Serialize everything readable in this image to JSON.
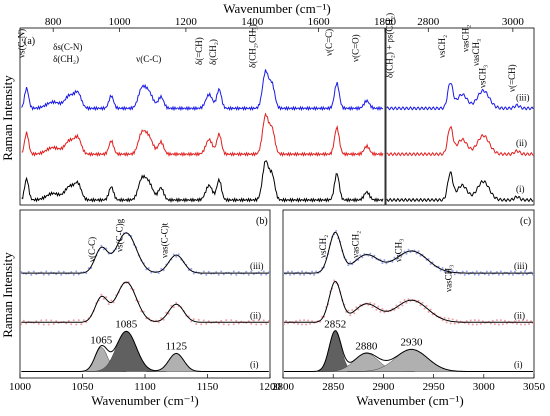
{
  "colors": {
    "black": "#000000",
    "red": "#e02020",
    "blue": "#1a1ae6",
    "pink": "#f2a0a8",
    "lightblue": "#9aa6f0",
    "gray": "#b0b0b0",
    "darkgray": "#606060"
  },
  "chart_data": [
    {
      "panel": "(a)",
      "type": "line",
      "xlabel": "Wavenumber (cm⁻¹)",
      "ylabel": "Raman Intensity",
      "xlim_left": [
        700,
        1800
      ],
      "xticks_left": [
        "800",
        "1000",
        "1200",
        "1400",
        "1600",
        "1800"
      ],
      "xlim_right": [
        2700,
        3050
      ],
      "xticks_right": [
        "2800",
        "3000"
      ],
      "series": [
        {
          "name": "(iii)",
          "color": "#1a1ae6",
          "offset": 2.0
        },
        {
          "name": "(ii)",
          "color": "#e02020",
          "offset": 1.0
        },
        {
          "name": "(i)",
          "color": "#000000",
          "offset": 0.0
        }
      ],
      "peaks_left": [
        [
          720,
          0.8,
          6
        ],
        [
          800,
          0.25,
          20
        ],
        [
          850,
          0.5,
          14
        ],
        [
          875,
          0.55,
          10
        ],
        [
          975,
          0.5,
          7
        ],
        [
          1065,
          0.55,
          10
        ],
        [
          1085,
          0.7,
          14
        ],
        [
          1125,
          0.45,
          8
        ],
        [
          1270,
          0.55,
          10
        ],
        [
          1300,
          0.75,
          7
        ],
        [
          1440,
          1.45,
          9
        ],
        [
          1460,
          0.9,
          8
        ],
        [
          1655,
          1.0,
          7
        ],
        [
          1745,
          0.3,
          8
        ]
      ],
      "peaks_right": [
        [
          2852,
          1.0,
          6
        ],
        [
          2880,
          0.55,
          12
        ],
        [
          2930,
          0.7,
          14
        ],
        [
          3010,
          0.12,
          6
        ]
      ],
      "annotations_left": [
        {
          "text": "νs(C-N)",
          "x": 713
        },
        {
          "text": "δs(C-N)",
          "x": 800
        },
        {
          "text": "δ(CH₂)",
          "x": 800
        },
        {
          "text": "ν(C-C)",
          "x": 1050
        },
        {
          "text": "δ(=CH)",
          "x": 1248
        },
        {
          "text": "δ(CH₂)",
          "x": 1290
        },
        {
          "text": "δ(CH₂,CH₃)",
          "x": 1410
        },
        {
          "text": "ν(C=C)",
          "x": 1640
        },
        {
          "text": "ν(C=O)",
          "x": 1720
        }
      ],
      "annotations_right": [
        {
          "text": "δ(CH₂) + ρs(CH₂)",
          "x": 2715
        },
        {
          "text": "νsCH₂",
          "x": 2840
        },
        {
          "text": "νasCH₂",
          "x": 2895
        },
        {
          "text": "νasCH₃",
          "x": 2920
        },
        {
          "text": "νsCH₃",
          "x": 2935
        },
        {
          "text": "ν(=CH)",
          "x": 3005
        }
      ]
    },
    {
      "panel": "(b)",
      "type": "line",
      "xlabel": "Wavenumber (cm⁻¹)",
      "ylabel": "Raman Intensity",
      "xlim": [
        1000,
        1200
      ],
      "xticks": [
        "1000",
        "1050",
        "1100",
        "1150",
        "1200"
      ],
      "series": [
        {
          "name": "(iii)",
          "color": "#000000",
          "offset": 2.2
        },
        {
          "name": "(ii)",
          "color": "#000000",
          "offset": 1.1
        },
        {
          "name": "(i)",
          "color": "#000000",
          "offset": 0.0
        }
      ],
      "fitted_peaks": [
        {
          "label": "1065",
          "center": 1065,
          "height": 0.6,
          "width": 5
        },
        {
          "label": "1085",
          "center": 1085,
          "height": 1.0,
          "width": 8
        },
        {
          "label": "1125",
          "center": 1125,
          "height": 0.45,
          "width": 6
        }
      ],
      "annotations": [
        {
          "text": "ν(C-C)",
          "x": 1060
        },
        {
          "text": "νs(C-C)g",
          "x": 1082
        },
        {
          "text": "νas(C-C)t",
          "x": 1118
        }
      ]
    },
    {
      "panel": "(c)",
      "type": "line",
      "xlabel": "Wavenumber (cm⁻¹)",
      "xlim": [
        2800,
        3050
      ],
      "xticks": [
        "2800",
        "2850",
        "2900",
        "2950",
        "3000",
        "3050"
      ],
      "series": [
        {
          "name": "(iii)",
          "color": "#000000",
          "offset": 2.2
        },
        {
          "name": "(ii)",
          "color": "#000000",
          "offset": 1.1
        },
        {
          "name": "(i)",
          "color": "#000000",
          "offset": 0.0
        }
      ],
      "fitted_peaks": [
        {
          "label": "2852",
          "center": 2852,
          "height": 1.0,
          "width": 6
        },
        {
          "label": "2880",
          "center": 2883,
          "height": 0.45,
          "width": 12
        },
        {
          "label": "2930",
          "center": 2928,
          "height": 0.55,
          "width": 16
        }
      ],
      "annotations": [
        {
          "text": "νsCH₂",
          "x": 2843
        },
        {
          "text": "νasCH₂",
          "x": 2875
        },
        {
          "text": "νsCH₃",
          "x": 2918
        },
        {
          "text": "νasCH₃",
          "x": 2968
        }
      ]
    }
  ]
}
